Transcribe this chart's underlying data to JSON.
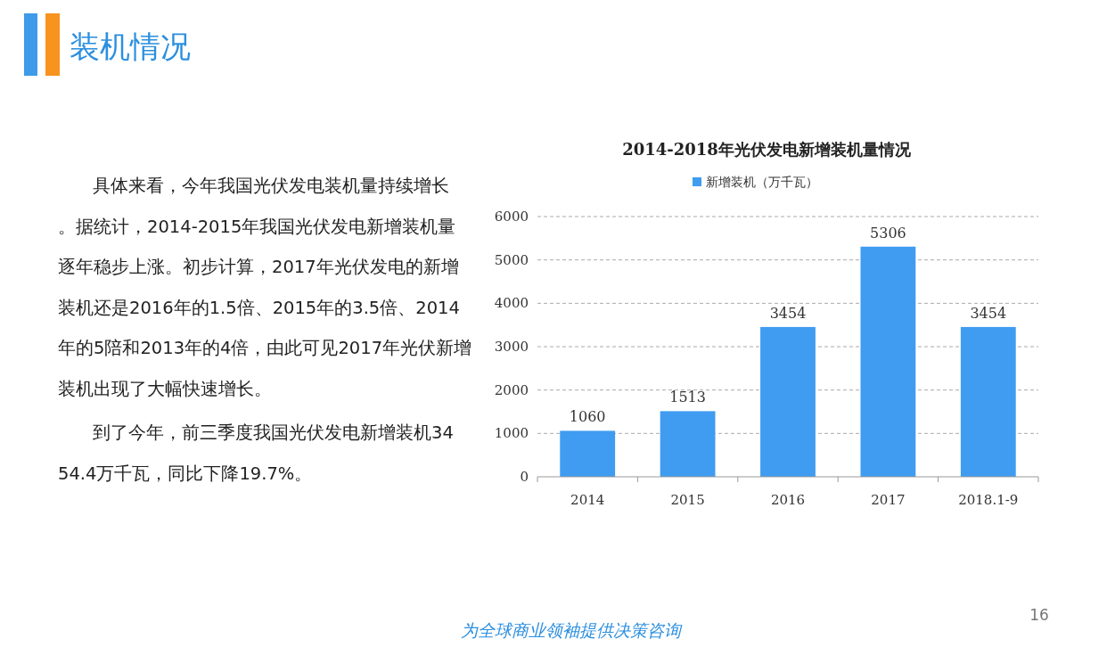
{
  "chart_data": {
    "type": "bar",
    "title": "2014-2018年光伏发电新增装机量情况",
    "categories": [
      "2014",
      "2015",
      "2016",
      "2017",
      "2018.1-9"
    ],
    "series": [
      {
        "name": "新增装机（万千瓦）",
        "color": "#3f9cf1",
        "values": [
          1060,
          1513,
          3454,
          5306,
          3454
        ]
      }
    ],
    "ylim": [
      0,
      6000
    ],
    "yticks": [
      0,
      1000,
      2000,
      3000,
      4000,
      5000,
      6000
    ],
    "grid": "y",
    "legend": "top",
    "data_labels": true,
    "annotations": [
      "装机情况",
      "具体来看，今年我国光伏发电装机量持续增长。据统计，2014-2015年我国光伏发电新增装机量逐年稳步上涨。初步计算，2017年光伏发电的新增装机还是2016年的1.5倍、2015年的3.5倍、2014年的5陪和2013年的4倍，由此可见2017年光伏新增装机出现了大幅快速增长。",
      "到了今年，前三季度我国光伏发电新增装机3454.4万千瓦，同比下降19.7%。",
      "为全球商业领袖提供决策咨询",
      "16"
    ]
  }
}
